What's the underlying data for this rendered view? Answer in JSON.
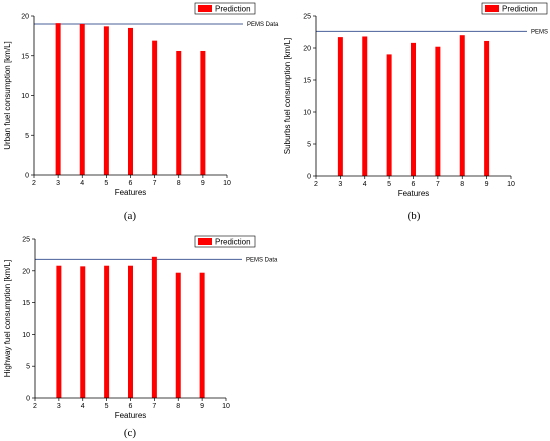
{
  "chart_data": [
    {
      "type": "bar",
      "x": [
        3,
        4,
        5,
        6,
        7,
        8,
        9
      ],
      "values": [
        19.1,
        19.0,
        18.7,
        18.5,
        16.9,
        15.6,
        15.6
      ],
      "xlabel": "Features",
      "ylabel": "Urban fuel consumption [km/L]",
      "xlim": [
        2,
        10
      ],
      "ylim": [
        0,
        20
      ],
      "xticks": [
        2,
        3,
        4,
        5,
        6,
        7,
        8,
        9,
        10
      ],
      "yticks": [
        0,
        5,
        10,
        15,
        20
      ],
      "legend": "Prediction",
      "legend_position": "top-right",
      "reference_line": {
        "label": "PEMS Data",
        "value": 19.0
      },
      "grid": false,
      "caption": "(a)",
      "bar_color": "#ff0000",
      "line_color": "#4a5f9a"
    },
    {
      "type": "bar",
      "x": [
        3,
        4,
        5,
        6,
        7,
        8,
        9
      ],
      "values": [
        21.7,
        21.8,
        19.0,
        20.8,
        20.2,
        22.0,
        21.1
      ],
      "xlabel": "Features",
      "ylabel": "Suburbs fuel consumption [km/L]",
      "xlim": [
        2,
        10
      ],
      "ylim": [
        0,
        25
      ],
      "xticks": [
        2,
        3,
        4,
        5,
        6,
        7,
        8,
        9,
        10
      ],
      "yticks": [
        0,
        5,
        10,
        15,
        20,
        25
      ],
      "legend": "Prediction",
      "legend_position": "top-right",
      "reference_line": {
        "label": "PEMS Data",
        "value": 22.6
      },
      "grid": false,
      "caption": "(b)",
      "bar_color": "#ff0000",
      "line_color": "#4a5f9a"
    },
    {
      "type": "bar",
      "x": [
        3,
        4,
        5,
        6,
        7,
        8,
        9
      ],
      "values": [
        20.8,
        20.7,
        20.8,
        20.8,
        22.2,
        19.7,
        19.7
      ],
      "xlabel": "Features",
      "ylabel": "Highway fuel consumption [km/L]",
      "xlim": [
        2,
        10
      ],
      "ylim": [
        0,
        25
      ],
      "xticks": [
        2,
        3,
        4,
        5,
        6,
        7,
        8,
        9,
        10
      ],
      "yticks": [
        0,
        5,
        10,
        15,
        20,
        25
      ],
      "legend": "Prediction",
      "legend_position": "top-right",
      "reference_line": {
        "label": "PEMS Data",
        "value": 21.8
      },
      "grid": false,
      "caption": "(c)",
      "bar_color": "#ff0000",
      "line_color": "#4a5f9a"
    }
  ]
}
